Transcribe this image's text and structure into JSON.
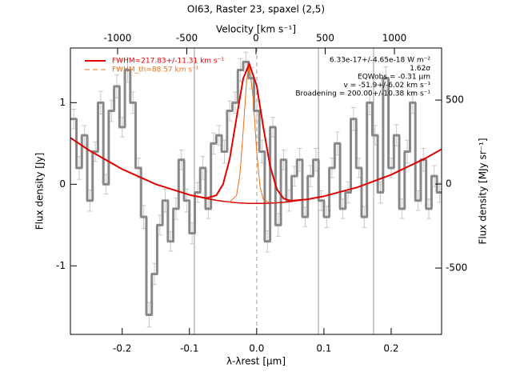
{
  "chart_data": {
    "type": "spectrum",
    "title": "OI63, Raster 23, spaxel (2,5)",
    "xlabel": "λ-λrest [μm]",
    "x2label": "Velocity [km s⁻¹]",
    "ylabel": "Flux density [Jy]",
    "y2label": "Flux density [MJy sr⁻¹]",
    "xlim": [
      -0.277,
      0.275
    ],
    "xticks": [
      -0.2,
      -0.1,
      {
        "value": 0,
        "label": "0.0"
      },
      0.1,
      0.2
    ],
    "x2lim": [
      -1341,
      1341
    ],
    "x2ticks": [
      -1000,
      -500,
      0,
      500,
      1000
    ],
    "ylim": [
      -1.84,
      1.67
    ],
    "yticks": [
      -1,
      0,
      1
    ],
    "y2lim": [
      -895,
      810
    ],
    "y2ticks": [
      -500,
      0,
      500
    ],
    "annotations": [
      "6.33e-17+/-4.65e-18 W m⁻²",
      "1.62σ",
      "EQWobs = -0.31 μm",
      "v = -51.9+/-6.02 km s⁻¹",
      "Broadening = 200.00+/-10.38 km s⁻¹"
    ],
    "spectrum": {
      "color": "#888888",
      "x": [
        -0.272,
        -0.264,
        -0.256,
        -0.248,
        -0.24,
        -0.232,
        -0.224,
        -0.216,
        -0.208,
        -0.2,
        -0.192,
        -0.184,
        -0.176,
        -0.168,
        -0.16,
        -0.152,
        -0.144,
        -0.136,
        -0.128,
        -0.12,
        -0.112,
        -0.104,
        -0.096,
        -0.088,
        -0.08,
        -0.072,
        -0.064,
        -0.056,
        -0.048,
        -0.04,
        -0.032,
        -0.024,
        -0.016,
        -0.008,
        0,
        0.008,
        0.016,
        0.024,
        0.032,
        0.04,
        0.048,
        0.056,
        0.064,
        0.072,
        0.08,
        0.088,
        0.096,
        0.104,
        0.112,
        0.12,
        0.128,
        0.136,
        0.144,
        0.152,
        0.16,
        0.168,
        0.176,
        0.184,
        0.192,
        0.2,
        0.208,
        0.216,
        0.224,
        0.232,
        0.24,
        0.248,
        0.256,
        0.264,
        0.272
      ],
      "values": [
        0.8,
        0.2,
        0.6,
        -0.2,
        0.4,
        1.0,
        0.0,
        0.9,
        1.2,
        0.7,
        1.4,
        1.0,
        0.2,
        -0.4,
        -1.6,
        -1.1,
        -0.5,
        -0.2,
        -0.7,
        -0.3,
        0.3,
        -0.2,
        -0.6,
        -0.1,
        0.2,
        -0.3,
        0.5,
        0.6,
        0.4,
        0.9,
        1.0,
        1.4,
        1.5,
        1.3,
        0.9,
        0.4,
        -0.7,
        0.7,
        -0.5,
        0.3,
        -0.2,
        0.1,
        0.3,
        -0.4,
        0.1,
        0.3,
        -0.2,
        -0.4,
        0.2,
        0.5,
        -0.3,
        -0.1,
        0.8,
        0.2,
        -0.4,
        1.0,
        0.6,
        -0.1,
        1.3,
        0.2,
        0.6,
        -0.3,
        0.4,
        1.0,
        -0.2,
        0.3,
        -0.3,
        0.1,
        -0.1
      ],
      "errors": [
        0.12,
        0.14,
        0.12,
        0.13,
        0.12,
        0.14,
        0.12,
        0.13,
        0.14,
        0.12,
        0.15,
        0.13,
        0.12,
        0.14,
        0.15,
        0.13,
        0.12,
        0.14,
        0.12,
        0.13,
        0.12,
        0.14,
        0.13,
        0.12,
        0.14,
        0.12,
        0.13,
        0.12,
        0.14,
        0.12,
        0.13,
        0.14,
        0.12,
        0.13,
        0.12,
        0.14,
        0.13,
        0.12,
        0.14,
        0.12,
        0.13,
        0.12,
        0.14,
        0.12,
        0.13,
        0.14,
        0.12,
        0.13,
        0.12,
        0.14,
        0.12,
        0.13,
        0.14,
        0.12,
        0.13,
        0.15,
        0.12,
        0.13,
        0.14,
        0.12,
        0.13,
        0.12,
        0.14,
        0.13,
        0.12,
        0.14,
        0.12,
        0.13,
        0.12
      ]
    },
    "series": [
      {
        "name": "FWHM=217.83+/-11.31 km s⁻¹",
        "color": "#e00000",
        "x": [
          -0.277,
          -0.25,
          -0.2,
          -0.15,
          -0.1,
          -0.075,
          -0.06,
          -0.05,
          -0.04,
          -0.03,
          -0.02,
          -0.011,
          0,
          0.01,
          0.02,
          0.03,
          0.04,
          0.05,
          0.075,
          0.1,
          0.15,
          0.2,
          0.25,
          0.275
        ],
        "values": [
          0.57,
          0.42,
          0.185,
          0.0,
          -0.13,
          -0.17,
          -0.136,
          0.0,
          0.315,
          0.811,
          1.297,
          1.476,
          1.211,
          0.694,
          0.221,
          -0.061,
          -0.174,
          -0.203,
          -0.185,
          -0.147,
          -0.037,
          0.117,
          0.315,
          0.43
        ]
      },
      {
        "name": "FWHM_th=88.57 km s⁻¹",
        "color": "#e8701a",
        "x": [
          -0.04,
          -0.03,
          -0.025,
          -0.02,
          -0.015,
          -0.011,
          -0.005,
          0,
          0.005,
          0.01,
          0.02
        ],
        "values": [
          -0.216,
          -0.139,
          0.113,
          0.658,
          1.27,
          1.476,
          1.031,
          0.4,
          -0.027,
          -0.188,
          -0.23
        ]
      }
    ],
    "baseline": {
      "color": "#e00000",
      "x": [
        -0.1,
        -0.075,
        -0.06,
        -0.05,
        -0.04,
        -0.03,
        -0.02,
        -0.011,
        0,
        0.01,
        0.02,
        0.03,
        0.04,
        0.05,
        0.075
      ],
      "values": [
        -0.13,
        -0.176,
        -0.197,
        -0.209,
        -0.218,
        -0.226,
        -0.231,
        -0.234,
        -0.235,
        -0.234,
        -0.231,
        -0.227,
        -0.221,
        -0.213,
        -0.185
      ]
    }
  }
}
